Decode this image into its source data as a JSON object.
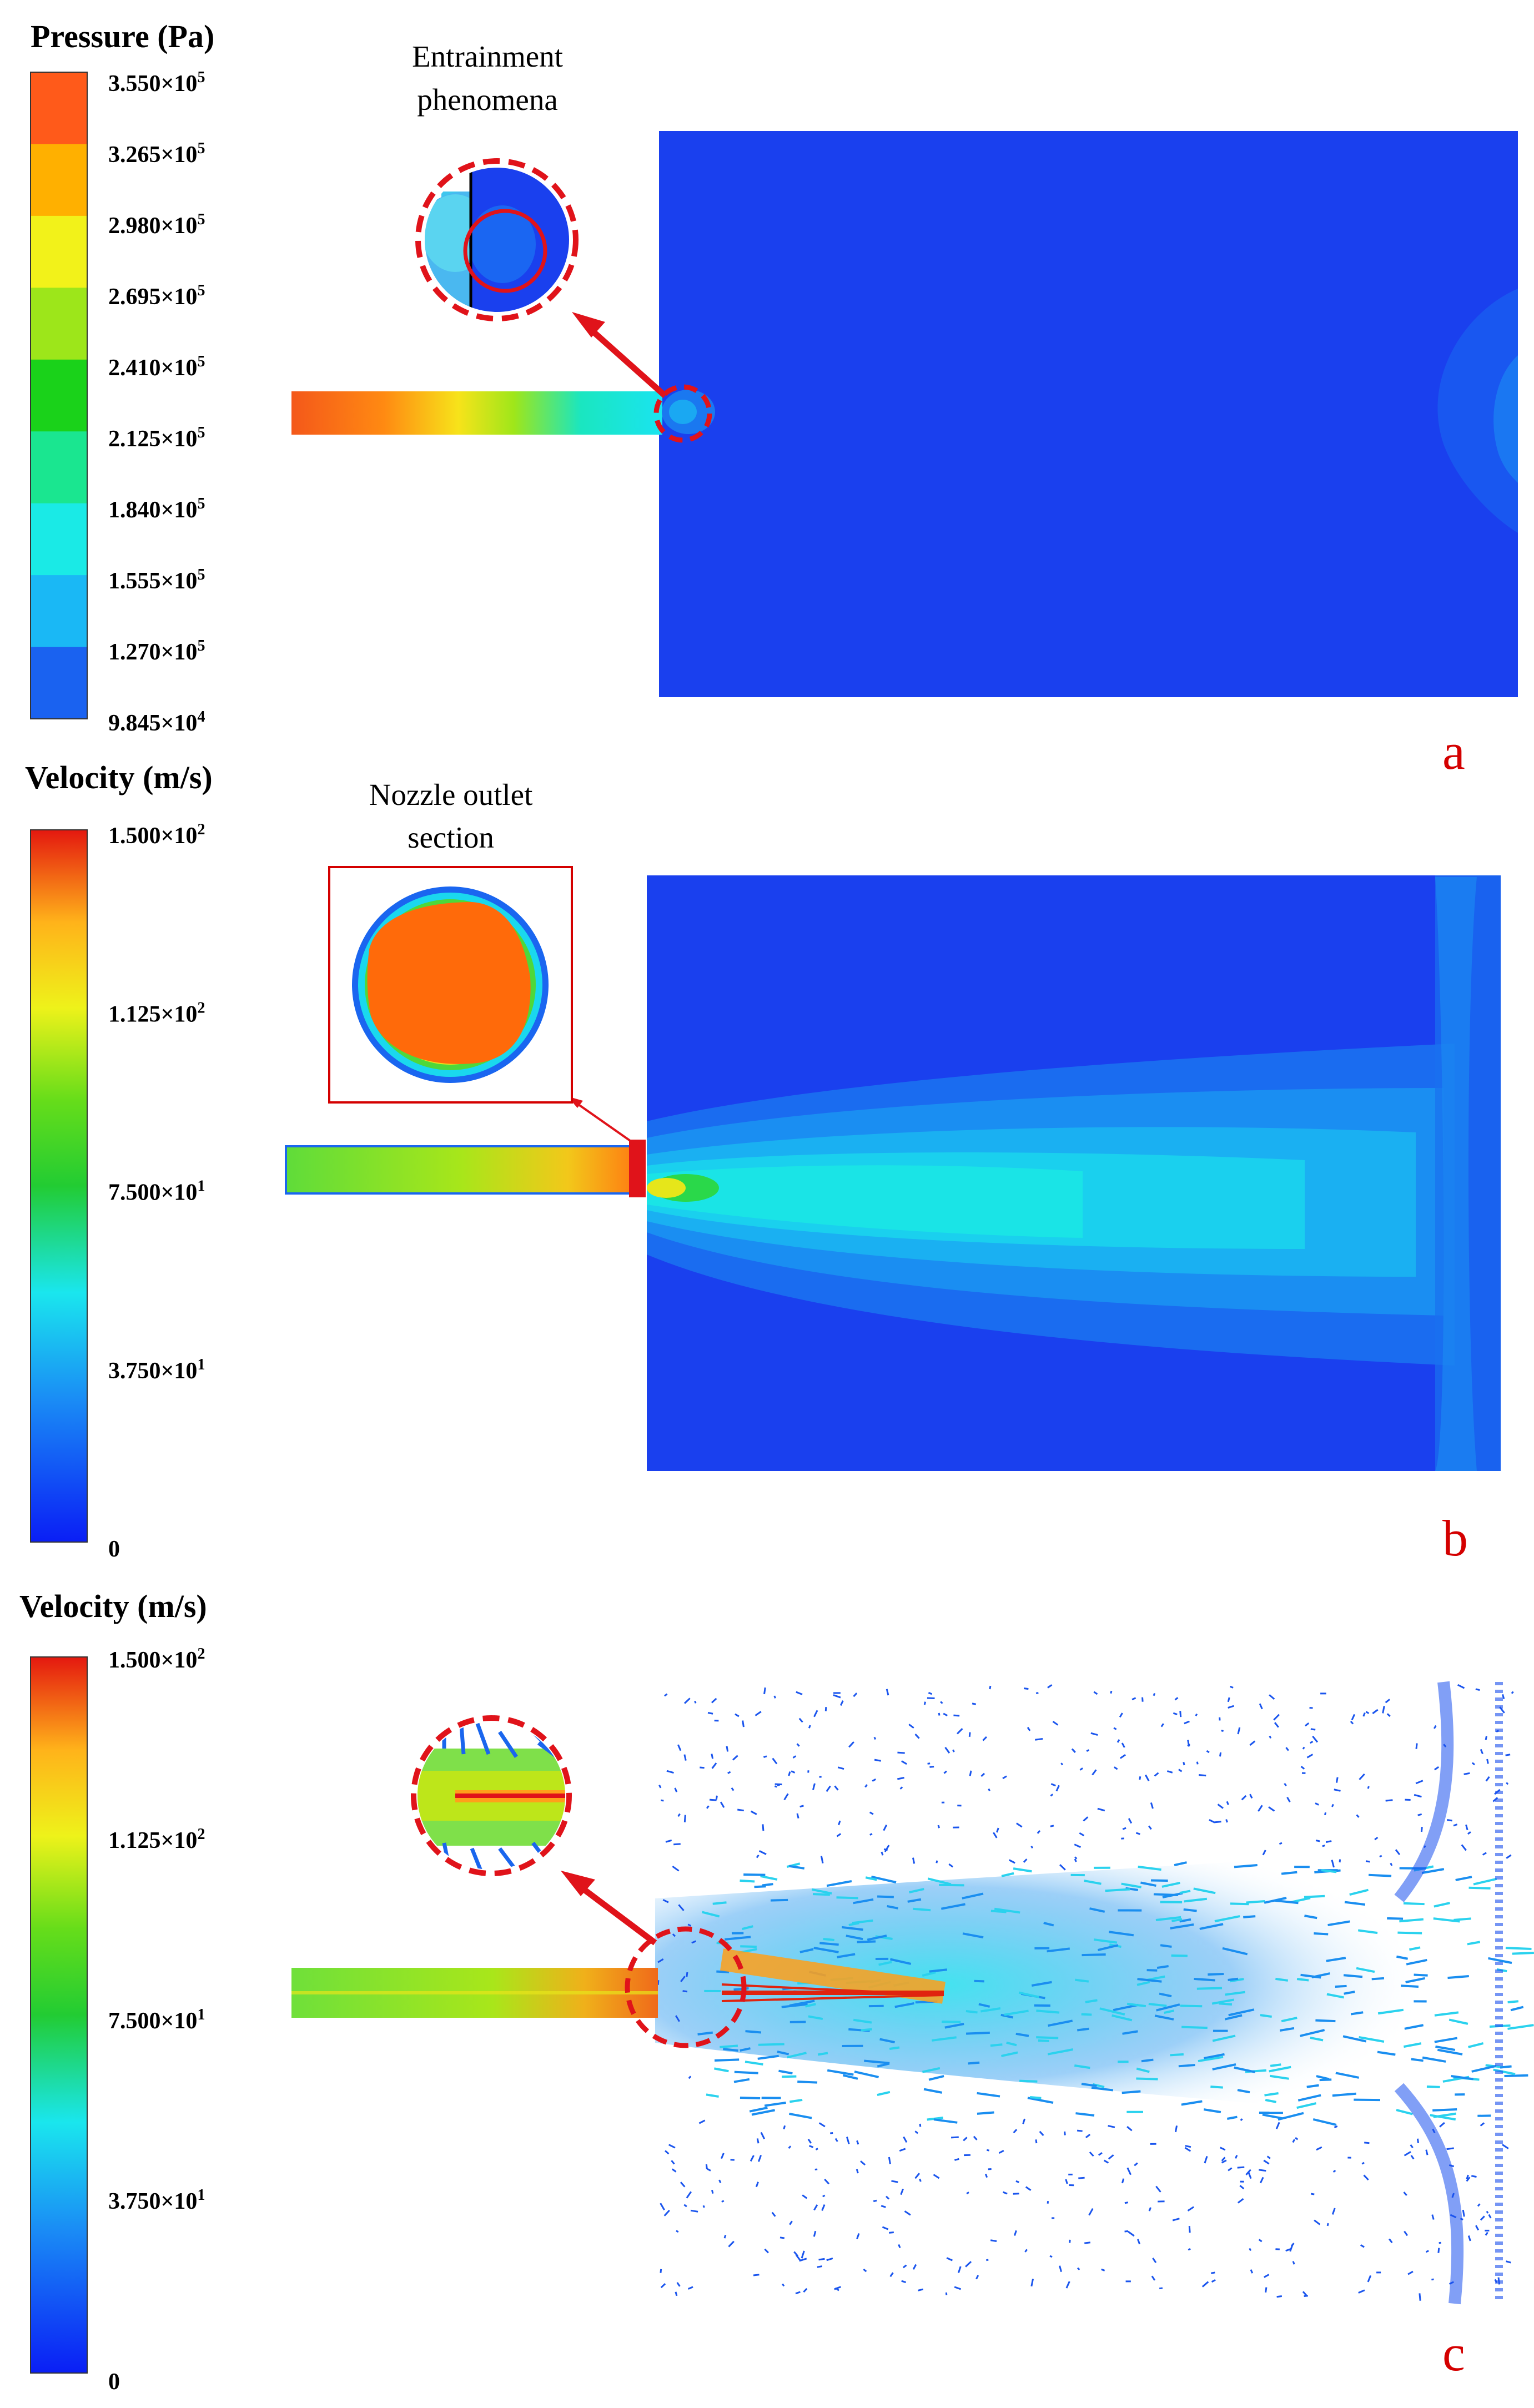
{
  "panel_a": {
    "legend_title": "Pressure (Pa)",
    "legend_ticks": [
      [
        "3.550×10",
        "5"
      ],
      [
        "3.265×10",
        "5"
      ],
      [
        "2.980×10",
        "5"
      ],
      [
        "2.695×10",
        "5"
      ],
      [
        "2.410×10",
        "5"
      ],
      [
        "2.125×10",
        "5"
      ],
      [
        "1.840×10",
        "5"
      ],
      [
        "1.555×10",
        "5"
      ],
      [
        "1.270×10",
        "5"
      ],
      [
        "9.845×10",
        "4"
      ]
    ],
    "band_colors": [
      "#ff5a1a",
      "#ffb000",
      "#f2f21a",
      "#9de61a",
      "#1ad21a",
      "#1ae690",
      "#1aeae6",
      "#1ab8f5",
      "#1a62f0"
    ],
    "inset_caption_1": "Entrainment",
    "inset_caption_2": "phenomena",
    "letter": "a"
  },
  "panel_b": {
    "legend_title": "Velocity (m/s)",
    "legend_ticks": [
      [
        "1.500×10",
        "2"
      ],
      [
        "1.125×10",
        "2"
      ],
      [
        "7.500×10",
        "1"
      ],
      [
        "3.750×10",
        "1"
      ],
      [
        "0",
        ""
      ]
    ],
    "inset_caption_1": "Nozzle outlet",
    "inset_caption_2": "section",
    "letter": "b"
  },
  "panel_c": {
    "legend_title": "Velocity (m/s)",
    "legend_ticks": [
      [
        "1.500×10",
        "2"
      ],
      [
        "1.125×10",
        "2"
      ],
      [
        "7.500×10",
        "1"
      ],
      [
        "3.750×10",
        "1"
      ],
      [
        "0",
        ""
      ]
    ],
    "letter": "c"
  },
  "colors": {
    "annotation_red": "#e0131a",
    "domain_blue": "#1a3ef0"
  }
}
